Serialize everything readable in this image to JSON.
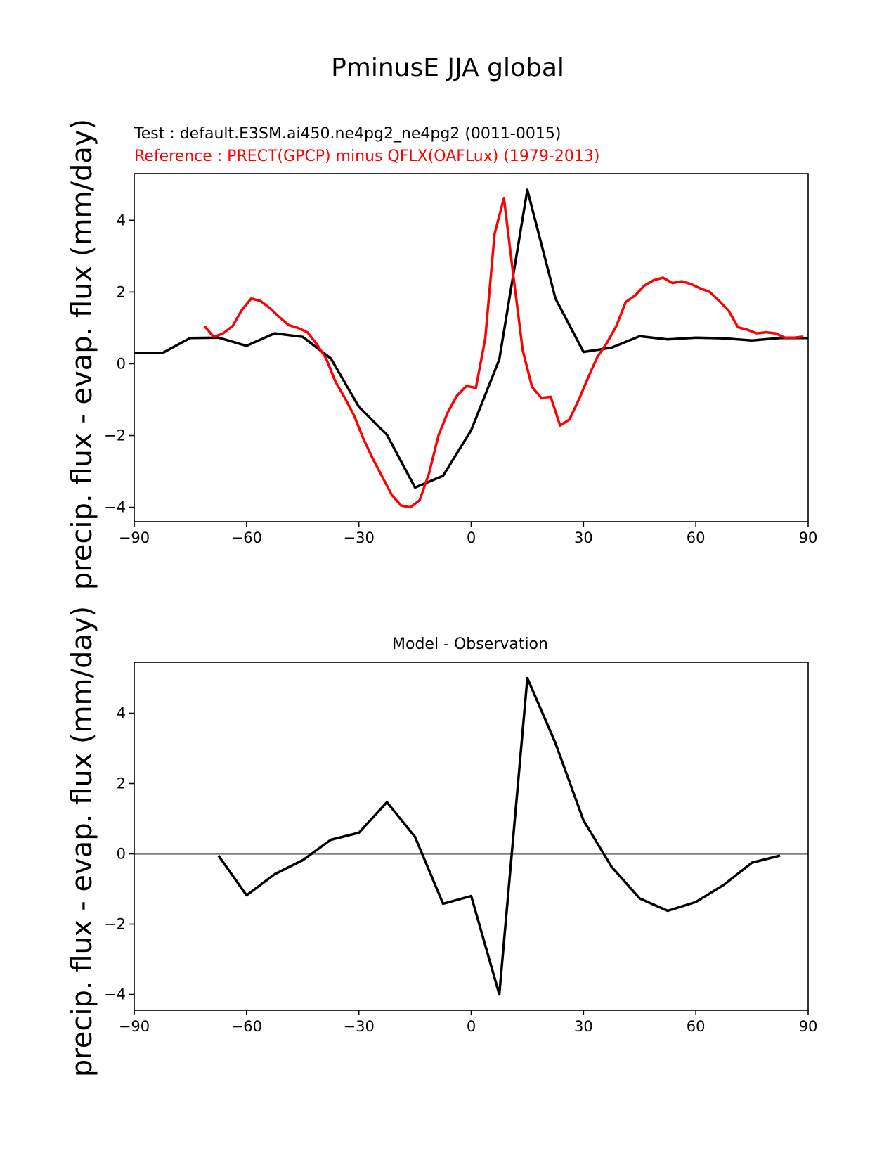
{
  "title": "PminusE JJA global",
  "chart_data": [
    {
      "type": "line",
      "subtitle_test": "Test : default.E3SM.ai450.ne4pg2_ne4pg2 (0011-0015)",
      "subtitle_ref": "Reference : PRECT(GPCP) minus QFLX(OAFLux) (1979-2013)",
      "ylabel": "precip. flux - evap. flux (mm/day)",
      "xlim": [
        -90,
        90
      ],
      "ylim": [
        -4.4,
        5.3
      ],
      "xticks": [
        -90,
        -60,
        -30,
        0,
        30,
        60,
        90
      ],
      "yticks": [
        -4,
        -2,
        0,
        2,
        4
      ],
      "series": [
        {
          "color": "#000000",
          "x": [
            -90,
            -82.5,
            -75,
            -67.5,
            -60,
            -52.5,
            -45,
            -37.5,
            -30,
            -22.5,
            -15,
            -7.5,
            0,
            7.5,
            15,
            22.5,
            30,
            37.5,
            45,
            52.5,
            60,
            67.5,
            75,
            82.5,
            90
          ],
          "y": [
            0.3,
            0.3,
            0.72,
            0.73,
            0.5,
            0.85,
            0.75,
            0.15,
            -1.2,
            -1.98,
            -3.45,
            -3.12,
            -1.85,
            0.12,
            4.85,
            1.82,
            0.33,
            0.45,
            0.77,
            0.68,
            0.73,
            0.71,
            0.65,
            0.72,
            0.72
          ]
        },
        {
          "color": "#ff0000",
          "x": [
            -71.25,
            -68.75,
            -66.25,
            -63.75,
            -61.25,
            -58.75,
            -56.25,
            -53.75,
            -51.25,
            -48.75,
            -46.25,
            -43.75,
            -41.25,
            -38.75,
            -36.25,
            -33.75,
            -31.25,
            -28.75,
            -26.25,
            -23.75,
            -21.25,
            -18.75,
            -16.25,
            -13.75,
            -11.25,
            -8.75,
            -6.25,
            -3.75,
            -1.25,
            1.25,
            3.75,
            6.25,
            8.75,
            11.25,
            13.75,
            16.25,
            18.75,
            21.25,
            23.75,
            26.25,
            28.75,
            31.25,
            33.75,
            36.25,
            38.75,
            41.25,
            43.75,
            46.25,
            48.75,
            51.25,
            53.75,
            56.25,
            58.75,
            61.25,
            63.75,
            66.25,
            68.75,
            71.25,
            73.75,
            76.25,
            78.75,
            81.25,
            83.75,
            86.25,
            88.75
          ],
          "y": [
            1.05,
            0.75,
            0.85,
            1.05,
            1.5,
            1.82,
            1.75,
            1.55,
            1.3,
            1.08,
            1.0,
            0.88,
            0.55,
            0.15,
            -0.5,
            -0.95,
            -1.45,
            -2.1,
            -2.65,
            -3.15,
            -3.65,
            -3.95,
            -4.0,
            -3.8,
            -3.05,
            -2.0,
            -1.35,
            -0.88,
            -0.62,
            -0.67,
            0.7,
            3.62,
            4.62,
            2.47,
            0.38,
            -0.65,
            -0.95,
            -0.92,
            -1.72,
            -1.55,
            -1.0,
            -0.38,
            0.2,
            0.58,
            1.05,
            1.72,
            1.9,
            2.18,
            2.33,
            2.4,
            2.25,
            2.3,
            2.22,
            2.1,
            2.0,
            1.75,
            1.48,
            1.02,
            0.95,
            0.85,
            0.88,
            0.85,
            0.73,
            0.73,
            0.76
          ]
        }
      ]
    },
    {
      "type": "line",
      "title": "Model - Observation",
      "ylabel": "precip. flux - evap. flux (mm/day)",
      "xlim": [
        -90,
        90
      ],
      "ylim": [
        -4.45,
        5.45
      ],
      "xticks": [
        -90,
        -60,
        -30,
        0,
        30,
        60,
        90
      ],
      "yticks": [
        -4,
        -2,
        0,
        2,
        4
      ],
      "zero_line_color": "#808080",
      "series": [
        {
          "color": "#000000",
          "x": [
            -67.5,
            -60,
            -52.5,
            -45,
            -37.5,
            -30,
            -22.5,
            -15,
            -7.5,
            0,
            7.5,
            15,
            22.5,
            30,
            37.5,
            45,
            52.5,
            60,
            67.5,
            75,
            82.5
          ],
          "y": [
            -0.05,
            -1.18,
            -0.58,
            -0.18,
            0.4,
            0.6,
            1.47,
            0.48,
            -1.42,
            -1.2,
            -4.0,
            5.0,
            3.15,
            0.95,
            -0.37,
            -1.27,
            -1.62,
            -1.37,
            -0.88,
            -0.25,
            -0.05
          ]
        }
      ]
    }
  ]
}
